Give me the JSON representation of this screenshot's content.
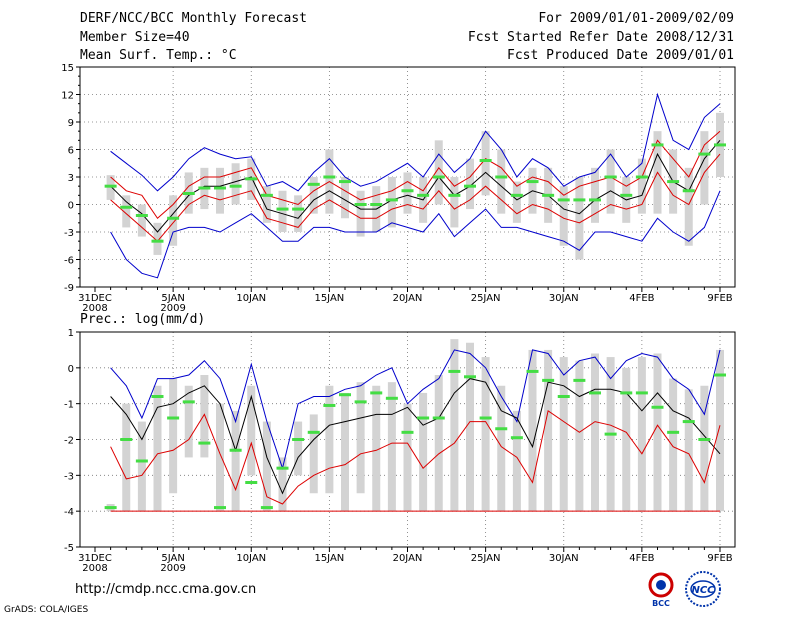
{
  "header": {
    "title": "DERF/NCC/BCC Monthly Forecast",
    "member_size": "Member Size=40",
    "variable": "Mean Surf. Temp.: °C",
    "period": "For 2009/01/01-2009/02/09",
    "start_ref": "Fcst Started Refer Date 2008/12/31",
    "produced": "Fcst Produced Date 2009/01/01"
  },
  "footer": {
    "url": "http://cmdp.ncc.cma.gov.cn",
    "grads": "GrADS: COLA/IGES",
    "logo1_text": "BCC",
    "logo2_text": "NCC"
  },
  "colors": {
    "box": "#d3d3d3",
    "mean": "#000000",
    "spread_outer": "#0000cc",
    "spread_inner": "#dd0000",
    "marker": "#44dd44",
    "grid": "#777777"
  },
  "chart_data": [
    {
      "type": "line",
      "title": "Mean Surf. Temp.: °C",
      "xlabel": "",
      "ylabel": "",
      "ylim": [
        -9,
        15
      ],
      "yticks": [
        -9,
        -6,
        -3,
        0,
        3,
        6,
        9,
        12,
        15
      ],
      "xticks": [
        {
          "day": 0,
          "label": "31DEC",
          "sub": "2008"
        },
        {
          "day": 5,
          "label": "5JAN",
          "sub": "2009"
        },
        {
          "day": 10,
          "label": "10JAN",
          "sub": ""
        },
        {
          "day": 15,
          "label": "15JAN",
          "sub": ""
        },
        {
          "day": 20,
          "label": "20JAN",
          "sub": ""
        },
        {
          "day": 25,
          "label": "25JAN",
          "sub": ""
        },
        {
          "day": 30,
          "label": "30JAN",
          "sub": ""
        },
        {
          "day": 35,
          "label": "4FEB",
          "sub": ""
        },
        {
          "day": 40,
          "label": "9FEB",
          "sub": ""
        }
      ],
      "days": [
        1,
        2,
        3,
        4,
        5,
        6,
        7,
        8,
        9,
        10,
        11,
        12,
        13,
        14,
        15,
        16,
        17,
        18,
        19,
        20,
        21,
        22,
        23,
        24,
        25,
        26,
        27,
        28,
        29,
        30,
        31,
        32,
        33,
        34,
        35,
        36,
        37,
        38,
        39,
        40
      ],
      "series": [
        {
          "name": "upper",
          "values": [
            5.8,
            4.5,
            3.2,
            1.5,
            3,
            5,
            6.2,
            5.5,
            5,
            5.2,
            2,
            2.5,
            1.5,
            3.5,
            5,
            3,
            2,
            2.5,
            3.5,
            4.5,
            3,
            5.5,
            3.5,
            5,
            8,
            6,
            3,
            5,
            4,
            2,
            3,
            3.5,
            5.5,
            3,
            4.5,
            12,
            7,
            6,
            9.5,
            11
          ]
        },
        {
          "name": "upper-mid",
          "values": [
            3,
            1.5,
            1,
            -1.5,
            0,
            2,
            3,
            3,
            3.5,
            4,
            1,
            0.5,
            0,
            1.5,
            2.5,
            1.5,
            0.5,
            1,
            1.5,
            2.5,
            1.5,
            4,
            2,
            3,
            5,
            4,
            2,
            3,
            2.5,
            1,
            2,
            2.5,
            3,
            2,
            3,
            7,
            5,
            3,
            6.5,
            8
          ]
        },
        {
          "name": "mean",
          "values": [
            2,
            0.3,
            -1,
            -3,
            -1,
            1,
            2,
            2,
            2.5,
            3,
            -0.5,
            -1,
            -1.5,
            0.5,
            1.5,
            0.5,
            -0.5,
            -0.5,
            0.5,
            1,
            0.5,
            3,
            1,
            2,
            3.5,
            2,
            0.5,
            1.5,
            1,
            -0.5,
            -1,
            0.5,
            1.5,
            0.5,
            1,
            5.5,
            2.5,
            1.5,
            5,
            7
          ]
        },
        {
          "name": "lower-mid",
          "values": [
            0.5,
            -1,
            -2.5,
            -4,
            -2,
            0,
            1,
            0.5,
            1,
            1.5,
            -1.5,
            -2,
            -2.5,
            -0.5,
            0.5,
            -0.5,
            -1.5,
            -1.5,
            -0.5,
            0,
            -0.5,
            1.5,
            -0.5,
            0.5,
            2,
            0.5,
            -1,
            0,
            -0.5,
            -1.5,
            -2,
            -1,
            0,
            -0.5,
            0,
            3.5,
            1,
            0,
            3.5,
            5.5
          ]
        },
        {
          "name": "lower",
          "values": [
            -3,
            -6,
            -7.5,
            -8,
            -3,
            -2.5,
            -2.5,
            -3,
            -2,
            -1,
            -2.5,
            -4,
            -4,
            -2.5,
            -2.5,
            -3,
            -3,
            -3,
            -2,
            -2.5,
            -3,
            -1,
            -3.5,
            -2,
            -0.5,
            -2.5,
            -2.5,
            -3,
            -3.5,
            -4,
            -5,
            -3,
            -3,
            -3.5,
            -4,
            -1.5,
            -3,
            -4,
            -2.5,
            1.5
          ]
        }
      ],
      "boxes": [
        {
          "low": 0.5,
          "high": 3.2
        },
        {
          "low": -2.5,
          "high": 1
        },
        {
          "low": -3.5,
          "high": 0
        },
        {
          "low": -5.5,
          "high": -2
        },
        {
          "low": -4.5,
          "high": 1
        },
        {
          "low": -1,
          "high": 3.5
        },
        {
          "low": -0.5,
          "high": 4
        },
        {
          "low": -1,
          "high": 4
        },
        {
          "low": 0,
          "high": 4.5
        },
        {
          "low": 0.5,
          "high": 5
        },
        {
          "low": -2,
          "high": 2
        },
        {
          "low": -3,
          "high": 1.5
        },
        {
          "low": -3,
          "high": 1
        },
        {
          "low": -1,
          "high": 3
        },
        {
          "low": -1,
          "high": 6
        },
        {
          "low": -1.5,
          "high": 3
        },
        {
          "low": -3.5,
          "high": 1.5
        },
        {
          "low": -3,
          "high": 2
        },
        {
          "low": -2.5,
          "high": 3
        },
        {
          "low": -1,
          "high": 3.5
        },
        {
          "low": -2,
          "high": 3
        },
        {
          "low": 0,
          "high": 7
        },
        {
          "low": -2.5,
          "high": 3
        },
        {
          "low": -0.5,
          "high": 5
        },
        {
          "low": 1,
          "high": 8
        },
        {
          "low": -1,
          "high": 6
        },
        {
          "low": -2,
          "high": 2.5
        },
        {
          "low": -1,
          "high": 4
        },
        {
          "low": -2,
          "high": 4
        },
        {
          "low": -4.5,
          "high": 2
        },
        {
          "low": -6,
          "high": 3
        },
        {
          "low": -2,
          "high": 4
        },
        {
          "low": -1,
          "high": 6
        },
        {
          "low": -2,
          "high": 3
        },
        {
          "low": -1,
          "high": 5
        },
        {
          "low": -1,
          "high": 8
        },
        {
          "low": -1,
          "high": 6
        },
        {
          "low": -4.5,
          "high": 4
        },
        {
          "low": 0,
          "high": 8
        },
        {
          "low": 3,
          "high": 10
        }
      ],
      "markers": [
        2,
        -0.3,
        -1.2,
        -4,
        -1.5,
        1.2,
        1.8,
        1.8,
        2,
        2.8,
        1,
        -0.5,
        -0.5,
        2.2,
        3,
        2.5,
        0,
        0,
        0.5,
        1.5,
        1,
        3,
        1,
        2,
        4.8,
        3,
        1,
        2.5,
        1,
        0.5,
        0.5,
        0.5,
        3,
        1,
        3,
        6.5,
        2.5,
        1.5,
        5.5,
        6.5
      ]
    },
    {
      "type": "line",
      "title": "Prec.: log(mm/d)",
      "xlabel": "",
      "ylabel": "",
      "ylim": [
        -5,
        1
      ],
      "yticks": [
        -5,
        -4,
        -3,
        -2,
        -1,
        0,
        1
      ],
      "xticks": [
        {
          "day": 0,
          "label": "31DEC",
          "sub": "2008"
        },
        {
          "day": 5,
          "label": "5JAN",
          "sub": "2009"
        },
        {
          "day": 10,
          "label": "10JAN",
          "sub": ""
        },
        {
          "day": 15,
          "label": "15JAN",
          "sub": ""
        },
        {
          "day": 20,
          "label": "20JAN",
          "sub": ""
        },
        {
          "day": 25,
          "label": "25JAN",
          "sub": ""
        },
        {
          "day": 30,
          "label": "30JAN",
          "sub": ""
        },
        {
          "day": 35,
          "label": "4FEB",
          "sub": ""
        },
        {
          "day": 40,
          "label": "9FEB",
          "sub": ""
        }
      ],
      "days": [
        1,
        2,
        3,
        4,
        5,
        6,
        7,
        8,
        9,
        10,
        11,
        12,
        13,
        14,
        15,
        16,
        17,
        18,
        19,
        20,
        21,
        22,
        23,
        24,
        25,
        26,
        27,
        28,
        29,
        30,
        31,
        32,
        33,
        34,
        35,
        36,
        37,
        38,
        39,
        40
      ],
      "series": [
        {
          "name": "upper",
          "values": [
            0,
            -0.5,
            -1.4,
            -0.3,
            -0.3,
            -0.2,
            0.2,
            -0.3,
            -1.5,
            0.1,
            -1.5,
            -2.8,
            -1,
            -0.8,
            -0.8,
            -0.6,
            -0.5,
            -0.2,
            0,
            -1,
            -0.6,
            -0.3,
            0.5,
            0.4,
            0,
            -0.8,
            -1.5,
            0.5,
            0.4,
            -0.2,
            0.2,
            0.3,
            -0.3,
            0.2,
            0.4,
            0.3,
            -0.3,
            -0.6,
            -1.3,
            0.5
          ]
        },
        {
          "name": "mean",
          "values": [
            -0.8,
            -1.3,
            -2,
            -1.1,
            -1,
            -0.7,
            -0.5,
            -1,
            -2.3,
            -0.8,
            -2.5,
            -3.5,
            -2.5,
            -2,
            -1.6,
            -1.5,
            -1.4,
            -1.3,
            -1.3,
            -1.1,
            -1.6,
            -1.4,
            -0.7,
            -0.3,
            -0.4,
            -1.2,
            -1.4,
            -2.2,
            -0.4,
            -0.5,
            -0.8,
            -0.6,
            -0.6,
            -0.7,
            -1.2,
            -0.7,
            -1.2,
            -1.4,
            -1.9,
            -2.4
          ]
        },
        {
          "name": "lower",
          "values": [
            -2.2,
            -3.1,
            -3,
            -2.4,
            -2.3,
            -2,
            -1.3,
            -2.4,
            -3.4,
            -2.1,
            -3.6,
            -3.8,
            -3.3,
            -3,
            -2.8,
            -2.7,
            -2.4,
            -2.3,
            -2.1,
            -2.1,
            -2.8,
            -2.4,
            -2.1,
            -1.5,
            -1.5,
            -2.2,
            -2.5,
            -3.2,
            -1.2,
            -1.5,
            -1.8,
            -1.5,
            -1.6,
            -1.8,
            -2.4,
            -1.6,
            -2.2,
            -2.4,
            -3.2,
            -1.6
          ]
        }
      ],
      "boxes": [
        {
          "low": -4,
          "high": -3.8
        },
        {
          "low": -4,
          "high": -1
        },
        {
          "low": -4,
          "high": -1.5
        },
        {
          "low": -4,
          "high": -0.5
        },
        {
          "low": -3.5,
          "high": -0.3
        },
        {
          "low": -2.5,
          "high": -0.5
        },
        {
          "low": -2.5,
          "high": -0.2
        },
        {
          "low": -4,
          "high": -1
        },
        {
          "low": -4,
          "high": -1.2
        },
        {
          "low": -3,
          "high": -0.5
        },
        {
          "low": -4,
          "high": -1.5
        },
        {
          "low": -4,
          "high": -2.5
        },
        {
          "low": -3,
          "high": -1.5
        },
        {
          "low": -3.5,
          "high": -1.3
        },
        {
          "low": -3.5,
          "high": -0.5
        },
        {
          "low": -4,
          "high": -0.7
        },
        {
          "low": -3.5,
          "high": -0.4
        },
        {
          "low": -4,
          "high": -0.5
        },
        {
          "low": -4,
          "high": -0.4
        },
        {
          "low": -4,
          "high": -1
        },
        {
          "low": -4,
          "high": -0.7
        },
        {
          "low": -4,
          "high": -0.2
        },
        {
          "low": -4,
          "high": 0.8
        },
        {
          "low": -4,
          "high": 0.7
        },
        {
          "low": -4,
          "high": 0.3
        },
        {
          "low": -4,
          "high": -0.5
        },
        {
          "low": -4,
          "high": -1.2
        },
        {
          "low": -4,
          "high": 0.5
        },
        {
          "low": -4,
          "high": 0.5
        },
        {
          "low": -4,
          "high": 0.3
        },
        {
          "low": -4,
          "high": 0.2
        },
        {
          "low": -4,
          "high": 0.4
        },
        {
          "low": -4,
          "high": 0.3
        },
        {
          "low": -4,
          "high": 0
        },
        {
          "low": -4,
          "high": 0.3
        },
        {
          "low": -4,
          "high": 0.4
        },
        {
          "low": -4,
          "high": -0.3
        },
        {
          "low": -4,
          "high": -0.6
        },
        {
          "low": -4,
          "high": -0.5
        },
        {
          "low": -4,
          "high": 0.5
        }
      ],
      "markers": [
        -3.9,
        -2,
        -2.6,
        -0.8,
        -1.4,
        -0.95,
        -2.1,
        -3.9,
        -2.3,
        -3.2,
        -3.9,
        -2.8,
        -2.0,
        -1.8,
        -1.05,
        -0.75,
        -0.95,
        -0.7,
        -0.85,
        -1.8,
        -1.4,
        -1.4,
        -0.1,
        -0.25,
        -1.4,
        -1.7,
        -1.95,
        -0.1,
        -0.35,
        -0.8,
        -0.35,
        -0.7,
        -1.85,
        -0.7,
        -0.7,
        -1.1,
        -1.8,
        -1.5,
        -2,
        -0.2
      ],
      "zero_line": -4
    }
  ]
}
